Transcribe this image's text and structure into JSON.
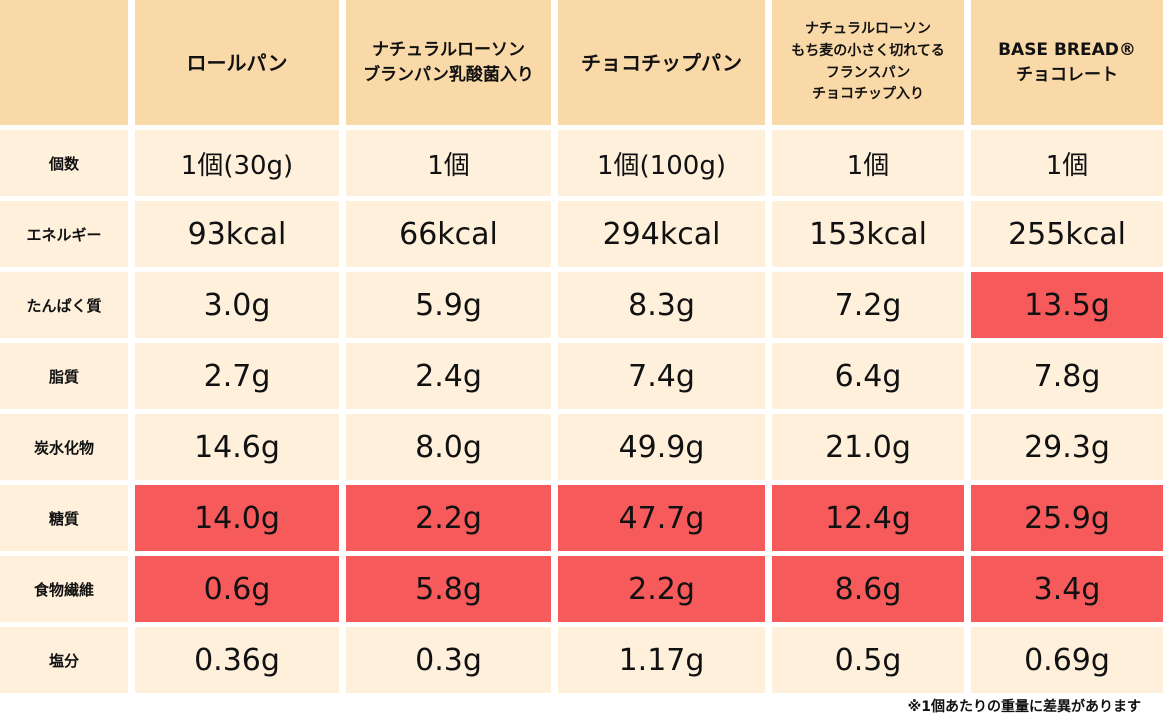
{
  "colors": {
    "header_bg": "#f9d9a8",
    "cell_bg": "#fff0dc",
    "highlight": "#f65a5a"
  },
  "columns": [
    "ロールパン",
    "ナチュラルローソン\nブランパン乳酸菌入り",
    "チョコチップパン",
    "ナチュラルローソン\nもち麦の小さく切れてる\nフランスパン\nチョコチップ入り",
    "BASE BREAD®\nチョコレート"
  ],
  "rows": [
    {
      "label": "個数",
      "values": [
        "1個(30g)",
        "1個",
        "1個(100g)",
        "1個",
        "1個"
      ],
      "highlight": [
        false,
        false,
        false,
        false,
        false
      ]
    },
    {
      "label": "エネルギー",
      "values": [
        "93kcal",
        "66kcal",
        "294kcal",
        "153kcal",
        "255kcal"
      ],
      "highlight": [
        false,
        false,
        false,
        false,
        false
      ]
    },
    {
      "label": "たんぱく質",
      "values": [
        "3.0g",
        "5.9g",
        "8.3g",
        "7.2g",
        "13.5g"
      ],
      "highlight": [
        false,
        false,
        false,
        false,
        true
      ]
    },
    {
      "label": "脂質",
      "values": [
        "2.7g",
        "2.4g",
        "7.4g",
        "6.4g",
        "7.8g"
      ],
      "highlight": [
        false,
        false,
        false,
        false,
        false
      ]
    },
    {
      "label": "炭水化物",
      "values": [
        "14.6g",
        "8.0g",
        "49.9g",
        "21.0g",
        "29.3g"
      ],
      "highlight": [
        false,
        false,
        false,
        false,
        false
      ]
    },
    {
      "label": "糖質",
      "values": [
        "14.0g",
        "2.2g",
        "47.7g",
        "12.4g",
        "25.9g"
      ],
      "highlight": [
        true,
        true,
        true,
        true,
        true
      ]
    },
    {
      "label": "食物繊維",
      "values": [
        "0.6g",
        "5.8g",
        "2.2g",
        "8.6g",
        "3.4g"
      ],
      "highlight": [
        true,
        true,
        true,
        true,
        true
      ]
    },
    {
      "label": "塩分",
      "values": [
        "0.36g",
        "0.3g",
        "1.17g",
        "0.5g",
        "0.69g"
      ],
      "highlight": [
        false,
        false,
        false,
        false,
        false
      ]
    }
  ],
  "footnote": "※1個あたりの重量に差異があります"
}
